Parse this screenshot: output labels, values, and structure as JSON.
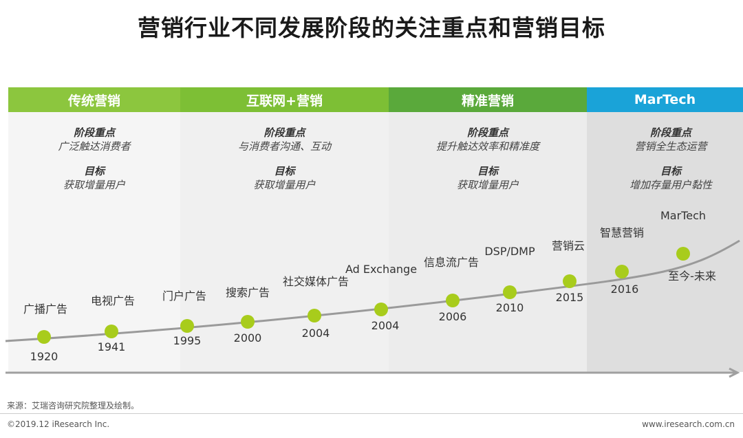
{
  "title": "营销行业不同发展阶段的关注重点和营销目标",
  "stages": [
    {
      "name": "传统营销",
      "focus_label": "阶段重点",
      "focus": "广泛触达消费者",
      "goal_label": "目标",
      "goal": "获取增量用户",
      "header_color": "#8cc63e",
      "bg": "#f5f5f5"
    },
    {
      "name": "互联网+营销",
      "focus_label": "阶段重点",
      "focus": "与消费者沟通、互动",
      "goal_label": "目标",
      "goal": "获取增量用户",
      "header_color": "#7dbf35",
      "bg": "#f0f0f0"
    },
    {
      "name": "精准营销",
      "focus_label": "阶段重点",
      "focus": "提升触达效率和精准度",
      "goal_label": "目标",
      "goal": "获取增量用户",
      "header_color": "#5aa93b",
      "bg": "#ececec"
    },
    {
      "name": "MarTech",
      "focus_label": "阶段重点",
      "focus": "营销全生态运营",
      "goal_label": "目标",
      "goal": "增加存量用户黏性",
      "header_color": "#1aa3d8",
      "bg": "#dedede"
    }
  ],
  "milestones": [
    {
      "year": "1920",
      "label": "广播广告"
    },
    {
      "year": "1941",
      "label": "电视广告"
    },
    {
      "year": "1995",
      "label": "门户广告"
    },
    {
      "year": "2000",
      "label": "搜索广告"
    },
    {
      "year": "2004",
      "label": "社交媒体广告"
    },
    {
      "year": "2004",
      "label": "Ad Exchange"
    },
    {
      "year": "2006",
      "label": "信息流广告"
    },
    {
      "year": "2010",
      "label": "DSP/DMP"
    },
    {
      "year": "2015",
      "label": "营销云"
    },
    {
      "year": "2016",
      "label": "智慧营销"
    },
    {
      "year": "至今-未来",
      "label": "MarTech"
    }
  ],
  "colors": {
    "dot": "#a8cc1c",
    "curve": "#9a9a9a"
  },
  "footer": {
    "source": "来源：艾瑞咨询研究院整理及绘制。",
    "copyright": "©2019.12 iResearch Inc.",
    "url": "www.iresearch.com.cn"
  }
}
